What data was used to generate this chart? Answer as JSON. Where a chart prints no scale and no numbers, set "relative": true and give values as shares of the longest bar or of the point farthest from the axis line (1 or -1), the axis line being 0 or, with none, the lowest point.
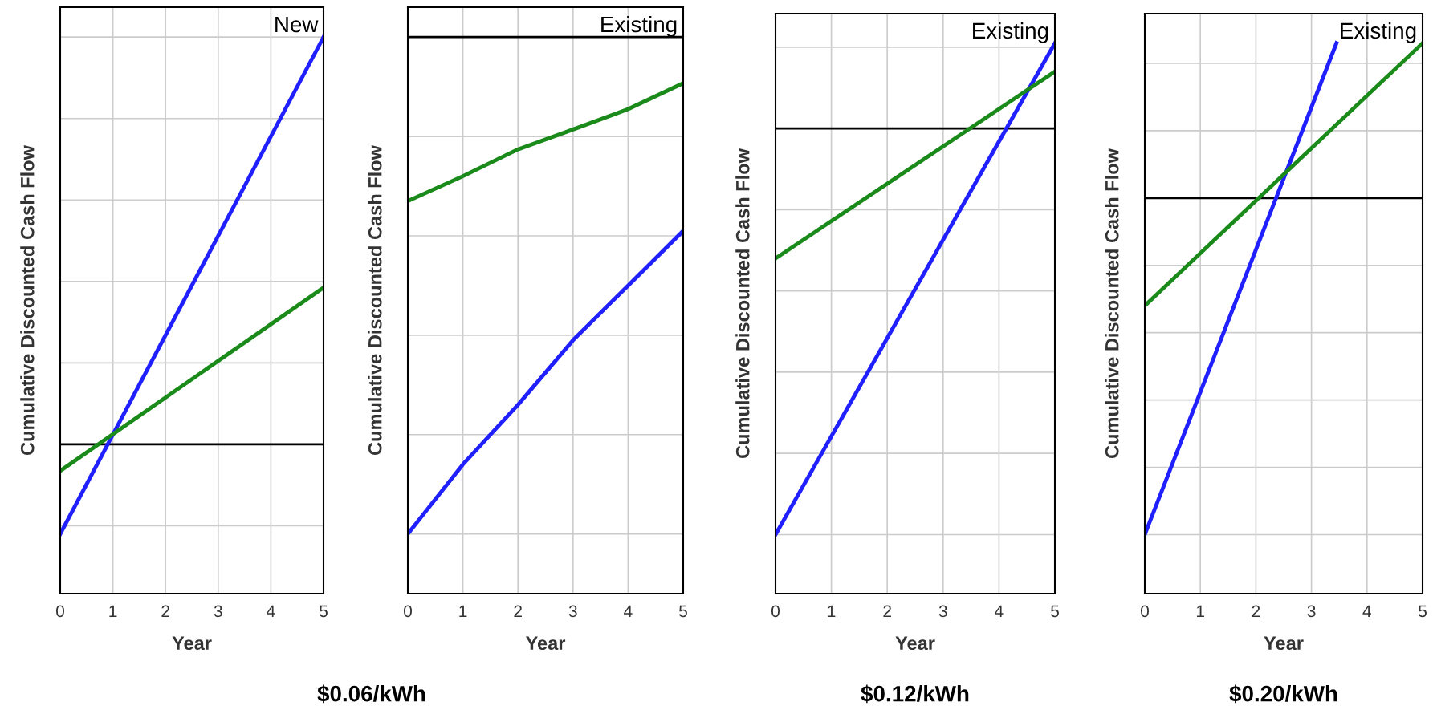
{
  "chart_data": [
    {
      "type": "line",
      "title": "New",
      "xlabel": "Year",
      "ylabel": "Cumulative Discounted Cash Flow",
      "relative": true,
      "xlim": [
        0,
        5
      ],
      "xticks": [
        0,
        1,
        2,
        3,
        4,
        5
      ],
      "grid": true,
      "ref_lines": [
        {
          "axis": "y",
          "value": 0,
          "color": "#000000"
        }
      ],
      "annotations": [
        "$0.06/kWh"
      ],
      "series": [
        {
          "color": "#2020ff",
          "x": [
            0,
            5
          ],
          "values": [
            -0.22,
            1.0
          ]
        },
        {
          "color": "#1a8a1a",
          "x": [
            0,
            5
          ],
          "values": [
            -0.065,
            0.385
          ]
        }
      ]
    },
    {
      "type": "line",
      "title": "Existing",
      "xlabel": "Year",
      "ylabel": "Cumulative Discounted Cash Flow",
      "relative": true,
      "xlim": [
        0,
        5
      ],
      "xticks": [
        0,
        1,
        2,
        3,
        4,
        5
      ],
      "grid": true,
      "ref_lines": [
        {
          "axis": "y",
          "value": 0,
          "color": "#000000"
        }
      ],
      "series": [
        {
          "color": "#2020ff",
          "x": [
            0,
            1,
            2,
            3,
            4,
            5
          ],
          "values": [
            -1.0,
            -0.86,
            -0.74,
            -0.61,
            -0.5,
            -0.39
          ]
        },
        {
          "color": "#1a8a1a",
          "x": [
            0,
            1,
            2,
            3,
            4,
            5
          ],
          "values": [
            -0.33,
            -0.28,
            -0.226,
            -0.186,
            -0.145,
            -0.093
          ]
        }
      ]
    },
    {
      "type": "line",
      "title": "Existing",
      "xlabel": "Year",
      "ylabel": "Cumulative Discounted Cash Flow",
      "relative": true,
      "xlim": [
        0,
        5
      ],
      "xticks": [
        0,
        1,
        2,
        3,
        4,
        5
      ],
      "grid": true,
      "ref_lines": [
        {
          "axis": "y",
          "value": 0,
          "color": "#000000"
        }
      ],
      "annotations": [
        "$0.12/kWh"
      ],
      "series": [
        {
          "color": "#2020ff",
          "x": [
            0,
            5
          ],
          "values": [
            -1.0,
            0.21
          ]
        },
        {
          "color": "#1a8a1a",
          "x": [
            0,
            5
          ],
          "values": [
            -0.32,
            0.14
          ]
        }
      ]
    },
    {
      "type": "line",
      "title": "Existing",
      "xlabel": "Year",
      "ylabel": "Cumulative Discounted Cash Flow",
      "relative": true,
      "xlim": [
        0,
        5
      ],
      "xticks": [
        0,
        1,
        2,
        3,
        4,
        5
      ],
      "grid": true,
      "ref_lines": [
        {
          "axis": "y",
          "value": 0,
          "color": "#000000"
        }
      ],
      "annotations": [
        "$0.20/kWh"
      ],
      "series": [
        {
          "color": "#2020ff",
          "x": [
            0,
            3.45
          ],
          "values": [
            -1.0,
            0.46
          ]
        },
        {
          "color": "#1a8a1a",
          "x": [
            0,
            5
          ],
          "values": [
            -0.32,
            0.46
          ]
        }
      ]
    }
  ]
}
